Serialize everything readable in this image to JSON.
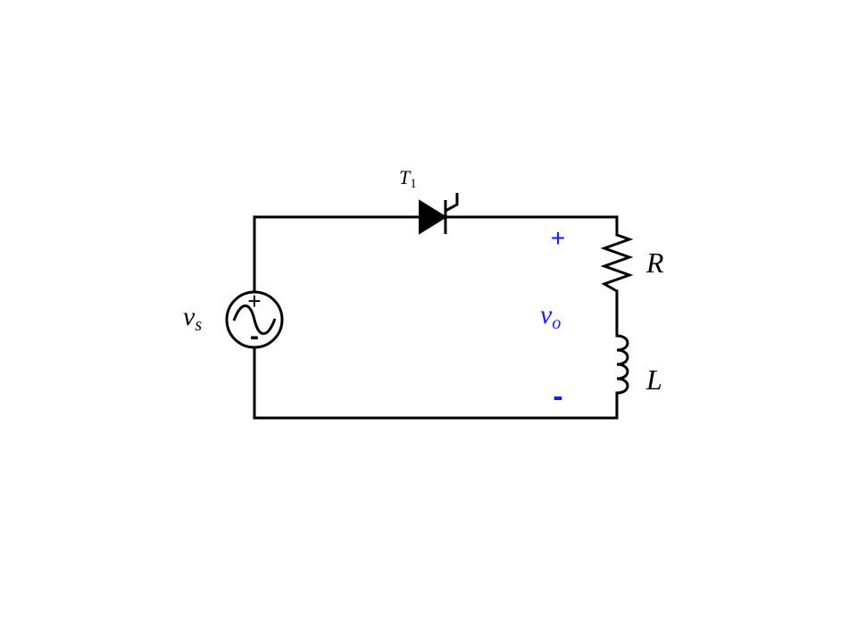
{
  "colors": {
    "wire": "#000000",
    "output_label": "#1a1aff"
  },
  "labels": {
    "thyristor": {
      "main": "T",
      "sub": "1"
    },
    "source": {
      "main": "v",
      "sub": "s",
      "plus": "+",
      "minus": "-"
    },
    "resistor": "R",
    "inductor": "L",
    "output_voltage": {
      "main": "v",
      "sub": "o",
      "plus": "+",
      "minus": "-"
    }
  }
}
